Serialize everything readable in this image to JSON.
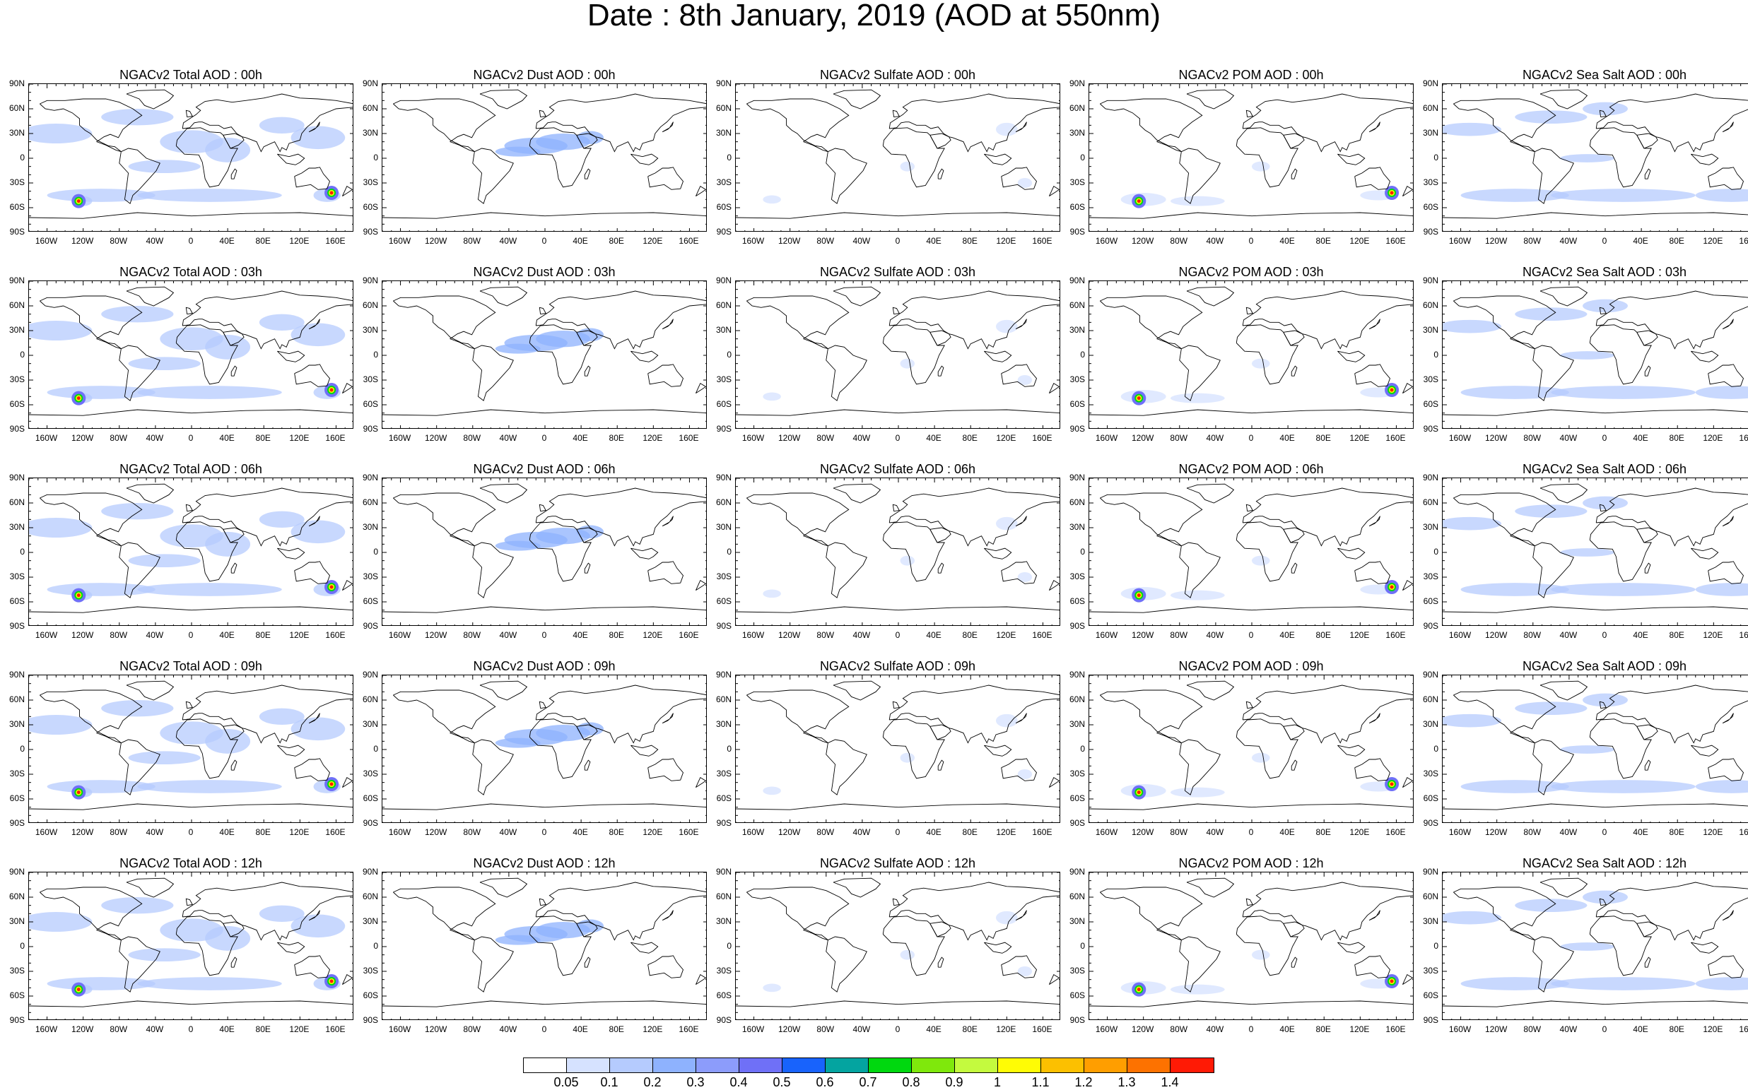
{
  "title": "Date : 8th January, 2019 (AOD at 550nm)",
  "y_axis_labels": [
    "90N",
    "60N",
    "30N",
    "0",
    "30S",
    "60S",
    "90S"
  ],
  "x_axis_labels": [
    "160W",
    "120W",
    "80W",
    "40W",
    "0",
    "40E",
    "80E",
    "120E",
    "160E"
  ],
  "panels": [
    {
      "title": "NGACv2 Total AOD : 00h",
      "species": "total"
    },
    {
      "title": "NGACv2 Dust AOD : 00h",
      "species": "dust"
    },
    {
      "title": "NGACv2 Sulfate AOD : 00h",
      "species": "sulfate"
    },
    {
      "title": "NGACv2 POM AOD : 00h",
      "species": "pom"
    },
    {
      "title": "NGACv2 Sea Salt AOD : 00h",
      "species": "seasalt"
    },
    {
      "title": "NGACv2 Total AOD : 03h",
      "species": "total"
    },
    {
      "title": "NGACv2 Dust AOD : 03h",
      "species": "dust"
    },
    {
      "title": "NGACv2 Sulfate AOD : 03h",
      "species": "sulfate"
    },
    {
      "title": "NGACv2 POM AOD : 03h",
      "species": "pom"
    },
    {
      "title": "NGACv2 Sea Salt AOD : 03h",
      "species": "seasalt"
    },
    {
      "title": "NGACv2 Total AOD : 06h",
      "species": "total"
    },
    {
      "title": "NGACv2 Dust AOD : 06h",
      "species": "dust"
    },
    {
      "title": "NGACv2 Sulfate AOD : 06h",
      "species": "sulfate"
    },
    {
      "title": "NGACv2 POM AOD : 06h",
      "species": "pom"
    },
    {
      "title": "NGACv2 Sea Salt AOD : 06h",
      "species": "seasalt"
    },
    {
      "title": "NGACv2 Total AOD : 09h",
      "species": "total"
    },
    {
      "title": "NGACv2 Dust AOD : 09h",
      "species": "dust"
    },
    {
      "title": "NGACv2 Sulfate AOD : 09h",
      "species": "sulfate"
    },
    {
      "title": "NGACv2 POM AOD : 09h",
      "species": "pom"
    },
    {
      "title": "NGACv2 Sea Salt  AOD : 09h",
      "species": "seasalt"
    },
    {
      "title": "NGACv2 Total AOD  : 12h",
      "species": "total"
    },
    {
      "title": "NGACv2 Dust AOD : 12h",
      "species": "dust"
    },
    {
      "title": "NGACv2 Sulfate AOD : 12h",
      "species": "sulfate"
    },
    {
      "title": "NGACv2 POM  AOD : 12h",
      "species": "pom"
    },
    {
      "title": "NGACv2 Sea Salt  AOD : 12h",
      "species": "seasalt"
    }
  ],
  "colorbar": {
    "labels": [
      "0.05",
      "0.1",
      "0.2",
      "0.3",
      "0.4",
      "0.5",
      "0.6",
      "0.7",
      "0.8",
      "0.9",
      "1",
      "1.1",
      "1.2",
      "1.3",
      "1.4"
    ],
    "colors": [
      "#ffffff",
      "#d6e2ff",
      "#b5cbfe",
      "#8eb2fe",
      "#8c9cfb",
      "#6f70f7",
      "#1863fc",
      "#04a4a0",
      "#00d80f",
      "#7fe80c",
      "#c4fa3e",
      "#fffc05",
      "#fcc000",
      "#ff9e00",
      "#fd7200",
      "#ff1a05"
    ]
  },
  "species_colors": {
    "total": "#b5cbfe",
    "dust": "#8eb2fe",
    "sulfate": "#d6e2ff",
    "pom": "#d6e2ff",
    "seasalt": "#b5cbfe"
  }
}
